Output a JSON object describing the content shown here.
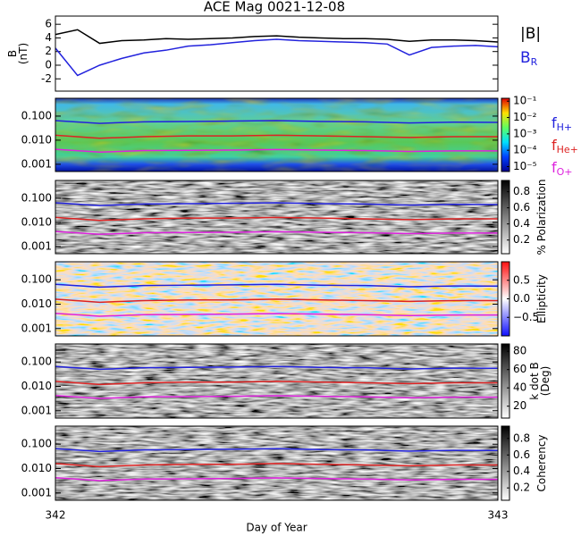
{
  "chart_data": [
    {
      "type": "line",
      "title": "ACE Mag 0021-12-08",
      "ylabel": [
        "B",
        "(nT)"
      ],
      "xlim": [
        342,
        343
      ],
      "ylim": [
        -3.8,
        7.2
      ],
      "yticks": [
        -2,
        0,
        2,
        4,
        6
      ],
      "x": [
        342,
        342.05,
        342.1,
        342.15,
        342.2,
        342.25,
        342.3,
        342.35,
        342.4,
        342.45,
        342.5,
        342.55,
        342.6,
        342.65,
        342.7,
        342.75,
        342.8,
        342.85,
        342.9,
        342.95,
        343
      ],
      "series": [
        {
          "name": "|B|",
          "color": "#000000",
          "values": [
            4.5,
            5.2,
            3.2,
            3.6,
            3.7,
            3.9,
            3.8,
            3.9,
            4.0,
            4.2,
            4.3,
            4.1,
            4.0,
            3.9,
            3.9,
            3.8,
            3.5,
            3.7,
            3.7,
            3.6,
            3.4
          ]
        },
        {
          "name": "B",
          "subscript": "R",
          "color": "#2222dd",
          "values": [
            2.5,
            -1.5,
            0.0,
            1.0,
            1.8,
            2.2,
            2.8,
            3.0,
            3.3,
            3.6,
            3.8,
            3.6,
            3.5,
            3.4,
            3.3,
            3.1,
            1.5,
            2.6,
            2.8,
            2.9,
            2.7
          ]
        }
      ]
    },
    {
      "type": "spectrogram",
      "log_y": true,
      "colormap": "jet",
      "xlim": [
        342,
        343
      ],
      "ylim": [
        0.0005,
        0.55
      ],
      "yticks": [
        {
          "value": 0.1,
          "label": "0.100"
        },
        {
          "value": 0.01,
          "label": "0.010"
        },
        {
          "value": 0.001,
          "label": "0.001"
        }
      ],
      "colorbar": {
        "log": true,
        "clim": [
          5e-06,
          0.15
        ],
        "ticks": [
          {
            "value": 0.1,
            "label": "10⁻¹"
          },
          {
            "value": 0.01,
            "label": "10⁻²"
          },
          {
            "value": 0.001,
            "label": "10⁻³"
          },
          {
            "value": 0.0001,
            "label": "10⁻⁴"
          },
          {
            "value": 1e-05,
            "label": "10⁻⁵"
          }
        ]
      },
      "x": [
        342,
        342.1,
        342.2,
        342.3,
        342.4,
        342.5,
        342.6,
        342.7,
        342.8,
        342.9,
        343
      ],
      "series": [
        {
          "name": "f",
          "subscript": "H+",
          "color": "#2222dd",
          "values": [
            0.065,
            0.05,
            0.058,
            0.06,
            0.062,
            0.065,
            0.06,
            0.058,
            0.052,
            0.056,
            0.055
          ]
        },
        {
          "name": "f",
          "subscript": "He+",
          "color": "#dd2222",
          "values": [
            0.016,
            0.012,
            0.014,
            0.015,
            0.015,
            0.016,
            0.015,
            0.014,
            0.013,
            0.014,
            0.014
          ]
        },
        {
          "name": "f",
          "subscript": "O+",
          "color": "#dd22dd",
          "values": [
            0.0042,
            0.0032,
            0.0037,
            0.0038,
            0.0039,
            0.0041,
            0.0039,
            0.0037,
            0.0034,
            0.0036,
            0.0036
          ]
        }
      ]
    },
    {
      "type": "spectrogram",
      "log_y": true,
      "colormap": "gray",
      "xlim": [
        342,
        343
      ],
      "ylim": [
        0.0005,
        0.55
      ],
      "yticks": [
        {
          "value": 0.1,
          "label": "0.100"
        },
        {
          "value": 0.01,
          "label": "0.010"
        },
        {
          "value": 0.001,
          "label": "0.001"
        }
      ],
      "colorbar": {
        "clim": [
          0.03,
          0.94
        ],
        "ticks": [
          0.2,
          0.4,
          0.6,
          0.8
        ],
        "label": [
          "% Polarization"
        ]
      },
      "x": [
        342,
        342.1,
        342.2,
        342.3,
        342.4,
        342.5,
        342.6,
        342.7,
        342.8,
        342.9,
        343
      ],
      "series": [
        {
          "color": "#2222dd",
          "values": [
            0.065,
            0.05,
            0.058,
            0.06,
            0.062,
            0.065,
            0.06,
            0.058,
            0.052,
            0.056,
            0.055
          ]
        },
        {
          "color": "#dd2222",
          "values": [
            0.016,
            0.012,
            0.014,
            0.015,
            0.015,
            0.016,
            0.015,
            0.014,
            0.013,
            0.014,
            0.014
          ]
        },
        {
          "color": "#dd22dd",
          "values": [
            0.0042,
            0.0032,
            0.0037,
            0.0038,
            0.0039,
            0.0041,
            0.0039,
            0.0037,
            0.0034,
            0.0036,
            0.0036
          ]
        }
      ]
    },
    {
      "type": "spectrogram",
      "log_y": true,
      "colormap": "bwr",
      "xlim": [
        342,
        343
      ],
      "ylim": [
        0.0005,
        0.55
      ],
      "yticks": [
        {
          "value": 0.1,
          "label": "0.100"
        },
        {
          "value": 0.01,
          "label": "0.010"
        },
        {
          "value": 0.001,
          "label": "0.001"
        }
      ],
      "colorbar": {
        "clim": [
          -1,
          1
        ],
        "ticks": [
          0.5,
          {
            "value": 0,
            "label": "0.0"
          },
          {
            "value": -0.5,
            "label": "−0.5"
          }
        ],
        "label": [
          "Ellipticity"
        ]
      },
      "x": [
        342,
        342.1,
        342.2,
        342.3,
        342.4,
        342.5,
        342.6,
        342.7,
        342.8,
        342.9,
        343
      ],
      "series": [
        {
          "color": "#2222dd",
          "values": [
            0.065,
            0.05,
            0.058,
            0.06,
            0.062,
            0.065,
            0.06,
            0.058,
            0.052,
            0.056,
            0.055
          ]
        },
        {
          "color": "#dd2222",
          "values": [
            0.016,
            0.012,
            0.014,
            0.015,
            0.015,
            0.016,
            0.015,
            0.014,
            0.013,
            0.014,
            0.014
          ]
        },
        {
          "color": "#dd22dd",
          "values": [
            0.0042,
            0.0032,
            0.0037,
            0.0038,
            0.0039,
            0.0041,
            0.0039,
            0.0037,
            0.0034,
            0.0036,
            0.0036
          ]
        }
      ]
    },
    {
      "type": "spectrogram",
      "log_y": true,
      "colormap": "gray",
      "xlim": [
        342,
        343
      ],
      "ylim": [
        0.0005,
        0.55
      ],
      "yticks": [
        {
          "value": 0.1,
          "label": "0.100"
        },
        {
          "value": 0.01,
          "label": "0.010"
        },
        {
          "value": 0.001,
          "label": "0.001"
        }
      ],
      "colorbar": {
        "clim": [
          7,
          88
        ],
        "ticks": [
          20,
          40,
          60,
          80
        ],
        "label": [
          "k dot B",
          "(Deg)"
        ]
      },
      "x": [
        342,
        342.1,
        342.2,
        342.3,
        342.4,
        342.5,
        342.6,
        342.7,
        342.8,
        342.9,
        343
      ],
      "series": [
        {
          "color": "#2222dd",
          "values": [
            0.065,
            0.05,
            0.058,
            0.06,
            0.062,
            0.065,
            0.06,
            0.058,
            0.052,
            0.056,
            0.055
          ]
        },
        {
          "color": "#dd2222",
          "values": [
            0.016,
            0.012,
            0.014,
            0.015,
            0.015,
            0.016,
            0.015,
            0.014,
            0.013,
            0.014,
            0.014
          ]
        },
        {
          "color": "#dd22dd",
          "values": [
            0.0042,
            0.0032,
            0.0037,
            0.0038,
            0.0039,
            0.0041,
            0.0039,
            0.0037,
            0.0034,
            0.0036,
            0.0036
          ]
        }
      ]
    },
    {
      "type": "spectrogram",
      "log_y": true,
      "colormap": "gray",
      "xlim": [
        342,
        343
      ],
      "xticks": [
        342,
        343
      ],
      "xlabel": "Day of Year",
      "ylim": [
        0.0005,
        0.55
      ],
      "yticks": [
        {
          "value": 0.1,
          "label": "0.100"
        },
        {
          "value": 0.01,
          "label": "0.010"
        },
        {
          "value": 0.001,
          "label": "0.001"
        }
      ],
      "colorbar": {
        "clim": [
          0.05,
          0.95
        ],
        "ticks": [
          0.2,
          0.4,
          0.6,
          0.8
        ],
        "label": [
          "Coherency"
        ]
      },
      "x": [
        342,
        342.1,
        342.2,
        342.3,
        342.4,
        342.5,
        342.6,
        342.7,
        342.8,
        342.9,
        343
      ],
      "series": [
        {
          "color": "#2222dd",
          "values": [
            0.065,
            0.05,
            0.058,
            0.06,
            0.062,
            0.065,
            0.06,
            0.058,
            0.052,
            0.056,
            0.055
          ]
        },
        {
          "color": "#dd2222",
          "values": [
            0.016,
            0.012,
            0.014,
            0.015,
            0.015,
            0.016,
            0.015,
            0.014,
            0.013,
            0.014,
            0.014
          ]
        },
        {
          "color": "#dd22dd",
          "values": [
            0.0042,
            0.0032,
            0.0037,
            0.0038,
            0.0039,
            0.0041,
            0.0039,
            0.0037,
            0.0034,
            0.0036,
            0.0036
          ]
        }
      ]
    }
  ]
}
